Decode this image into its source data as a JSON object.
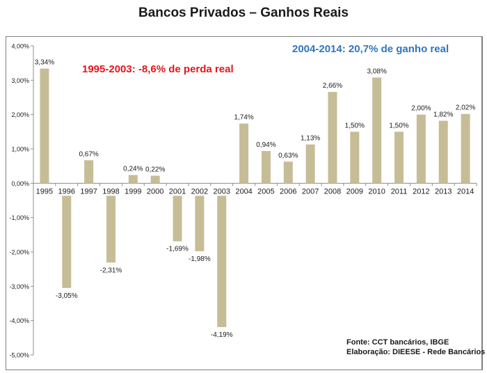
{
  "title": "Bancos Privados – Ganhos Reais",
  "annotations": {
    "left": {
      "text": "1995-2003: -8,6% de perda real",
      "color": "#e8141b"
    },
    "right": {
      "text": "2004-2014: 20,7% de ganho real",
      "color": "#2e75c2"
    }
  },
  "source": {
    "line1": "Fonte: CCT bancários, IBGE",
    "line2": "Elaboração: DIEESE - Rede Bancários"
  },
  "colors": {
    "bar": "#c6bd97",
    "axis": "#8c8c8c"
  },
  "chart_data": {
    "type": "bar",
    "title": "Bancos Privados – Ganhos Reais",
    "xlabel": "",
    "ylabel": "",
    "categories": [
      "1995",
      "1996",
      "1997",
      "1998",
      "1999",
      "2000",
      "2001",
      "2002",
      "2003",
      "2004",
      "2005",
      "2006",
      "2007",
      "2008",
      "2009",
      "2010",
      "2011",
      "2012",
      "2013",
      "2014"
    ],
    "values": [
      3.34,
      -3.05,
      0.67,
      -2.31,
      0.24,
      0.22,
      -1.69,
      -1.98,
      -4.19,
      1.74,
      0.94,
      0.63,
      1.13,
      2.66,
      1.5,
      3.08,
      1.5,
      2.0,
      1.82,
      2.02
    ],
    "labels": [
      "3,34%",
      "-3,05%",
      "0,67%",
      "-2,31%",
      "0,24%",
      "0,22%",
      "-1,69%",
      "-1,98%",
      "-4,19%",
      "1,74%",
      "0,94%",
      "0,63%",
      "1,13%",
      "2,66%",
      "1,50%",
      "3,08%",
      "1,50%",
      "2,00%",
      "1,82%",
      "2,02%"
    ],
    "ylim": [
      -5,
      4
    ],
    "yticks": [
      4,
      3,
      2,
      1,
      0,
      -1,
      -2,
      -3,
      -4,
      -5
    ],
    "ytick_labels": [
      "4,00%",
      "3,00%",
      "2,00%",
      "1,00%",
      "0,00%",
      "-1,00%",
      "-2,00%",
      "-3,00%",
      "-4,00%",
      "-5,00%"
    ],
    "grid": false,
    "legend": "none"
  }
}
